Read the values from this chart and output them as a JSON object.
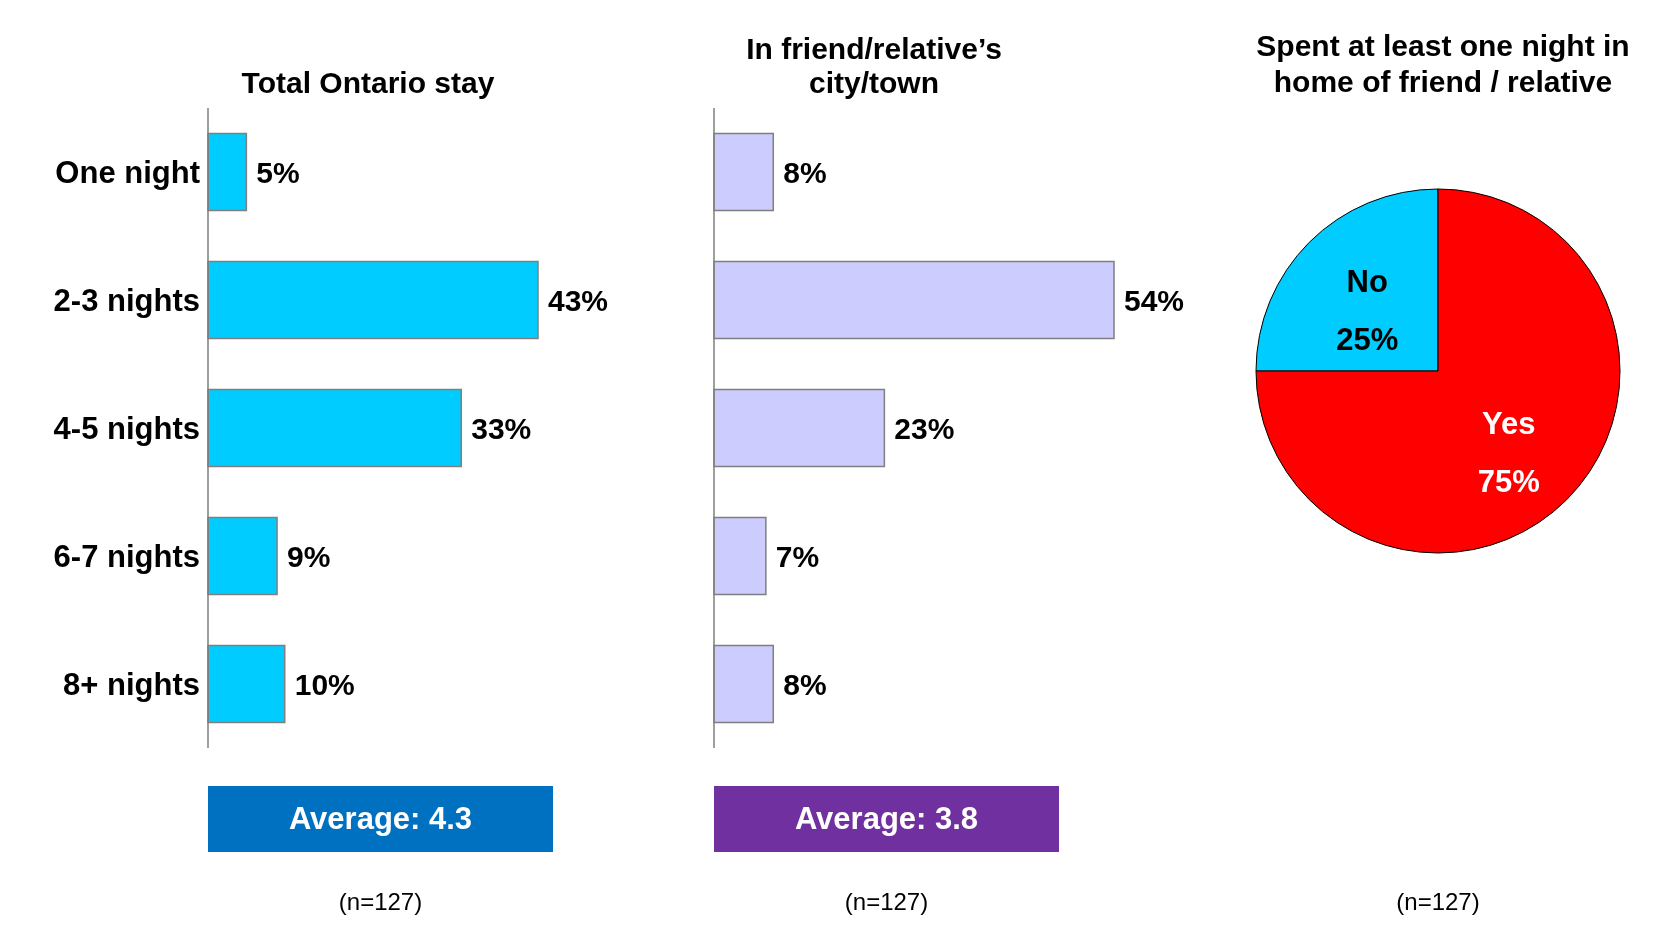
{
  "chart_data": [
    {
      "type": "bar",
      "orientation": "horizontal",
      "title": "Total Ontario stay",
      "categories": [
        "One night",
        "2-3 nights",
        "4-5 nights",
        "6-7 nights",
        "8+ nights"
      ],
      "values": [
        5,
        43,
        33,
        9,
        10
      ],
      "value_labels": [
        "5%",
        "43%",
        "33%",
        "9%",
        "10%"
      ],
      "color": "#00ccff",
      "annotations": [
        "Average: 4.3",
        "(n=127)"
      ]
    },
    {
      "type": "bar",
      "orientation": "horizontal",
      "title": "In friend/relative’s city/town",
      "categories": [
        null,
        null,
        null,
        null,
        null
      ],
      "values": [
        8,
        54,
        23,
        7,
        8
      ],
      "value_labels": [
        "8%",
        "54%",
        "23%",
        "7%",
        "8%"
      ],
      "color": "#ccccff",
      "tick_labels": false,
      "annotations": [
        "Average: 3.8",
        "(n=127)"
      ]
    },
    {
      "type": "pie",
      "title": "Spent at least one night in home of friend / relative",
      "categories": [
        "No",
        "Yes"
      ],
      "values": [
        25,
        75
      ],
      "colors": [
        "#00ccff",
        "#ff0000"
      ],
      "value_labels": [
        "25%",
        "75%"
      ],
      "annotations": [
        "(n=127)"
      ]
    }
  ]
}
